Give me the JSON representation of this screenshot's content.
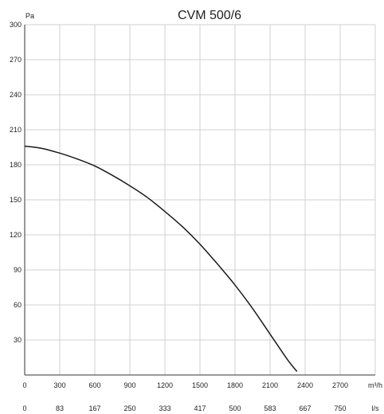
{
  "chart_data": {
    "type": "line",
    "title": "CVM 500/6",
    "ylabel": "Pa",
    "xlabel": "m³/h",
    "x2label": "l/s",
    "xlim": [
      0,
      3000
    ],
    "ylim": [
      0,
      300
    ],
    "grid": true,
    "x_ticks": [
      0,
      300,
      600,
      900,
      1200,
      1500,
      1800,
      2100,
      2400,
      2700
    ],
    "x2_ticks": [
      "0",
      "83",
      "167",
      "250",
      "333",
      "417",
      "500",
      "583",
      "667",
      "750"
    ],
    "y_ticks": [
      30,
      60,
      90,
      120,
      150,
      180,
      210,
      240,
      270,
      300
    ],
    "series": [
      {
        "x": [
          0,
          150,
          300,
          450,
          600,
          750,
          900,
          1050,
          1200,
          1350,
          1500,
          1650,
          1800,
          1950,
          2100,
          2250,
          2330
        ],
        "y": [
          196,
          194,
          190,
          185,
          179,
          171,
          162,
          152,
          140,
          127,
          112,
          95,
          77,
          57,
          35,
          13,
          3
        ]
      }
    ]
  }
}
